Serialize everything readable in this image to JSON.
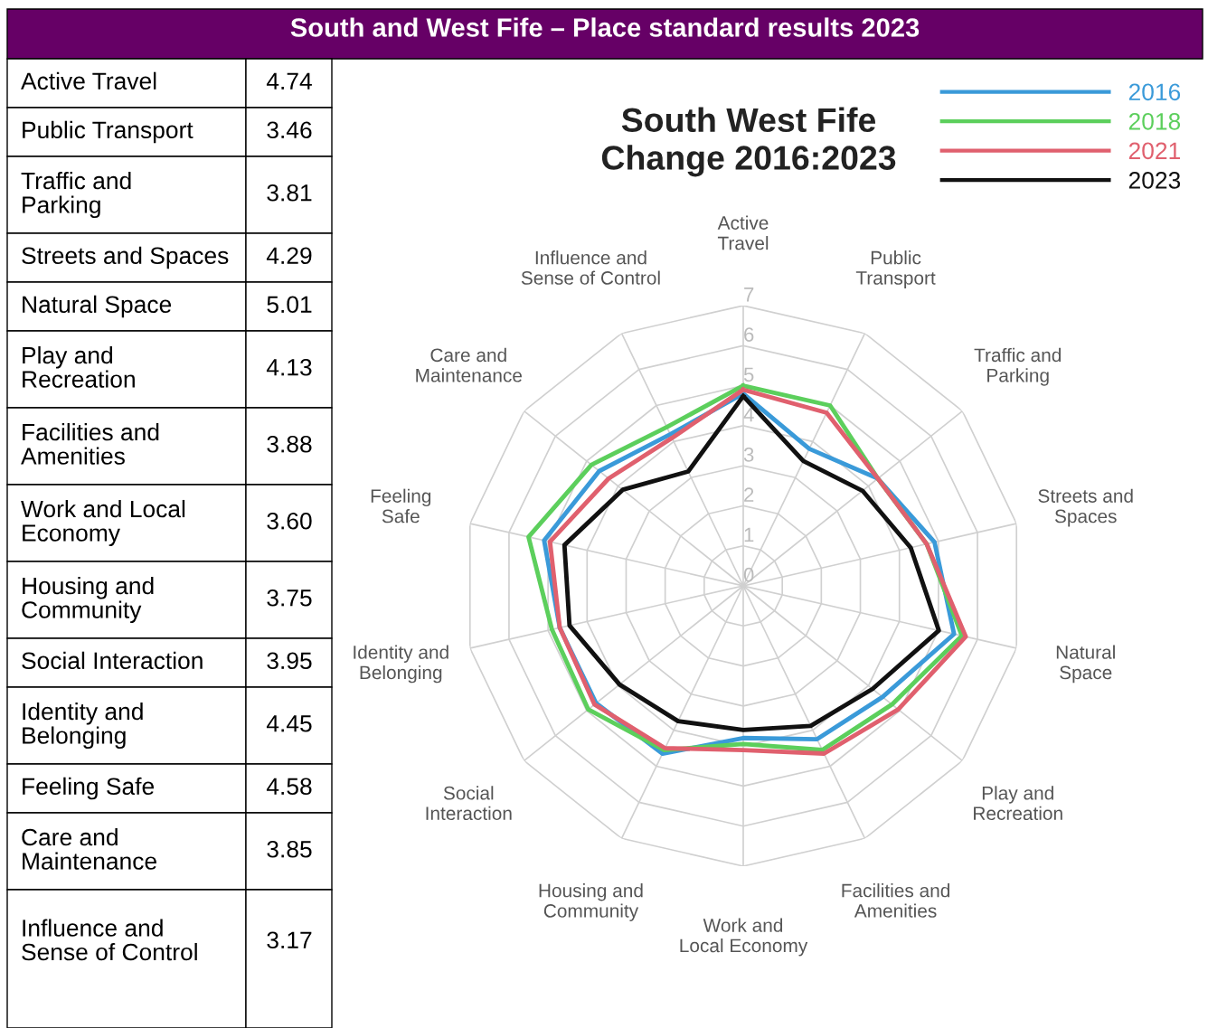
{
  "chart_data": [
    {
      "type": "other",
      "title": "South and West Fife – Place standard results 2023",
      "categories": [
        "Active Travel",
        "Public Transport",
        "Traffic and Parking",
        "Streets and Spaces",
        "Natural Space",
        "Play and Recreation",
        "Facilities and Amenities",
        "Work and Local Economy",
        "Housing and Community",
        "Social Interaction",
        "Identity and Belonging",
        "Feeling Safe",
        "Care and Maintenance",
        "Influence and Sense of Control"
      ],
      "value_labels": [
        "4.74",
        "3.46",
        "3.81",
        "4.29",
        "5.01",
        "4.13",
        "3.88",
        "3.60",
        "3.75",
        "3.95",
        "4.45",
        "4.58",
        "3.85",
        "3.17"
      ]
    },
    {
      "type": "radar",
      "title": "South West Fife\nChange 2016:2023",
      "categories": [
        "Active Travel",
        "Public Transport",
        "Traffic and Parking",
        "Streets and Spaces",
        "Natural Space",
        "Play and Recreation",
        "Facilities and Amenities",
        "Work and Local Economy",
        "Housing and Community",
        "Social Interaction",
        "Identity and Belonging",
        "Feeling Safe",
        "Care and Maintenance",
        "Influence and Sense of Control"
      ],
      "series": [
        {
          "name": "2016",
          "color": "#3a9ad9",
          "values": [
            4.8,
            3.8,
            4.3,
            4.9,
            5.4,
            4.45,
            4.25,
            3.8,
            4.65,
            4.7,
            4.7,
            5.1,
            4.6,
            4.2
          ]
        },
        {
          "name": "2018",
          "color": "#5ccf5c",
          "values": [
            5.0,
            5.0,
            4.3,
            4.7,
            5.6,
            4.75,
            4.55,
            3.95,
            4.55,
            4.95,
            4.9,
            5.5,
            4.85,
            4.4
          ]
        },
        {
          "name": "2021",
          "color": "#e0606e",
          "values": [
            4.9,
            4.8,
            4.3,
            4.7,
            5.7,
            4.95,
            4.65,
            4.1,
            4.5,
            4.75,
            4.7,
            4.95,
            4.3,
            4.1
          ]
        },
        {
          "name": "2023",
          "color": "#111111",
          "values": [
            4.74,
            3.46,
            3.81,
            4.29,
            5.01,
            4.13,
            3.88,
            3.6,
            3.75,
            3.95,
            4.45,
            4.58,
            3.85,
            3.17
          ]
        }
      ],
      "ylim": [
        0,
        7
      ],
      "yticks": [
        0,
        1,
        2,
        3,
        4,
        5,
        6,
        7
      ],
      "grid": true,
      "legend": "top right",
      "line_style": "solid",
      "marker": "none"
    }
  ]
}
